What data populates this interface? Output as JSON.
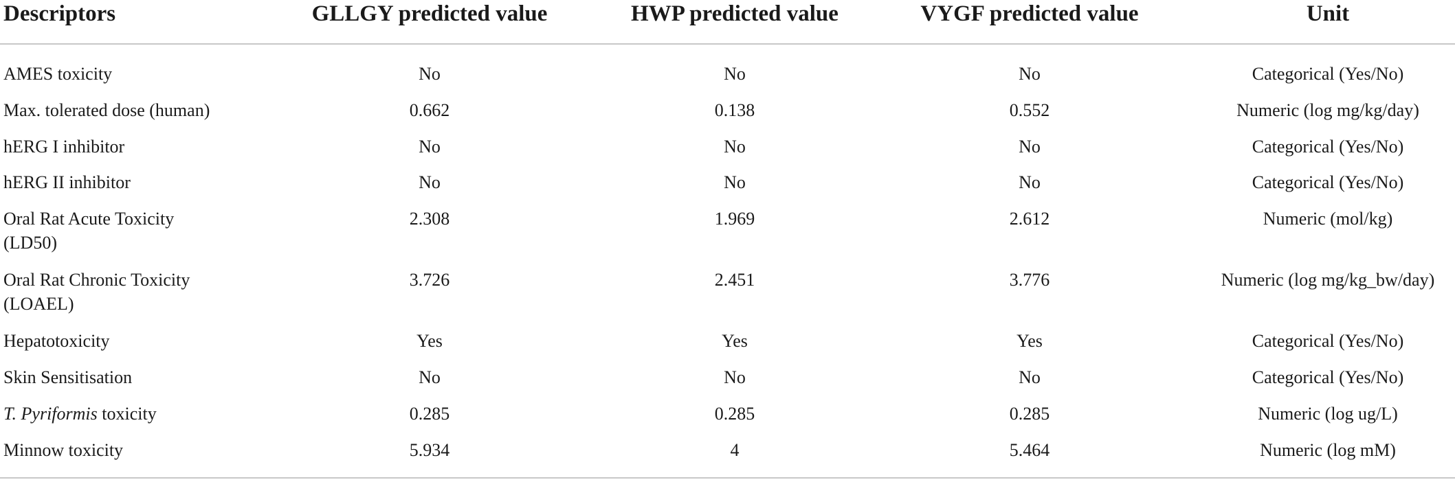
{
  "table": {
    "headers": [
      "Descriptors",
      "GLLGY predicted value",
      "HWP predicted value",
      "VYGF predicted value",
      "Unit"
    ],
    "rows": [
      {
        "descriptor": "AMES toxicity",
        "gllgy": "No",
        "hwp": "No",
        "vygf": "No",
        "unit": "Categorical (Yes/No)"
      },
      {
        "descriptor": "Max. tolerated dose (human)",
        "gllgy": "0.662",
        "hwp": "0.138",
        "vygf": "0.552",
        "unit": "Numeric (log mg/kg/day)"
      },
      {
        "descriptor": "hERG I inhibitor",
        "gllgy": "No",
        "hwp": "No",
        "vygf": "No",
        "unit": "Categorical (Yes/No)"
      },
      {
        "descriptor": "hERG II inhibitor",
        "gllgy": "No",
        "hwp": "No",
        "vygf": "No",
        "unit": "Categorical (Yes/No)"
      },
      {
        "descriptor_line1": "Oral Rat Acute Toxicity",
        "descriptor_line2": "(LD50)",
        "gllgy": "2.308",
        "hwp": "1.969",
        "vygf": "2.612",
        "unit": "Numeric (mol/kg)"
      },
      {
        "descriptor_line1": "Oral Rat Chronic Toxicity",
        "descriptor_line2": "(LOAEL)",
        "gllgy": "3.726",
        "hwp": "2.451",
        "vygf": "3.776",
        "unit": "Numeric (log mg/kg_bw/day)"
      },
      {
        "descriptor": "Hepatotoxicity",
        "gllgy": "Yes",
        "hwp": "Yes",
        "vygf": "Yes",
        "unit": "Categorical (Yes/No)"
      },
      {
        "descriptor": "Skin Sensitisation",
        "gllgy": "No",
        "hwp": "No",
        "vygf": "No",
        "unit": "Categorical (Yes/No)"
      },
      {
        "descriptor_italic": "T. Pyriformis",
        "descriptor_rest": " toxicity",
        "gllgy": "0.285",
        "hwp": "0.285",
        "vygf": "0.285",
        "unit": "Numeric (log ug/L)"
      },
      {
        "descriptor": "Minnow toxicity",
        "gllgy": "5.934",
        "hwp": "4",
        "vygf": "5.464",
        "unit": "Numeric (log mM)"
      }
    ]
  }
}
